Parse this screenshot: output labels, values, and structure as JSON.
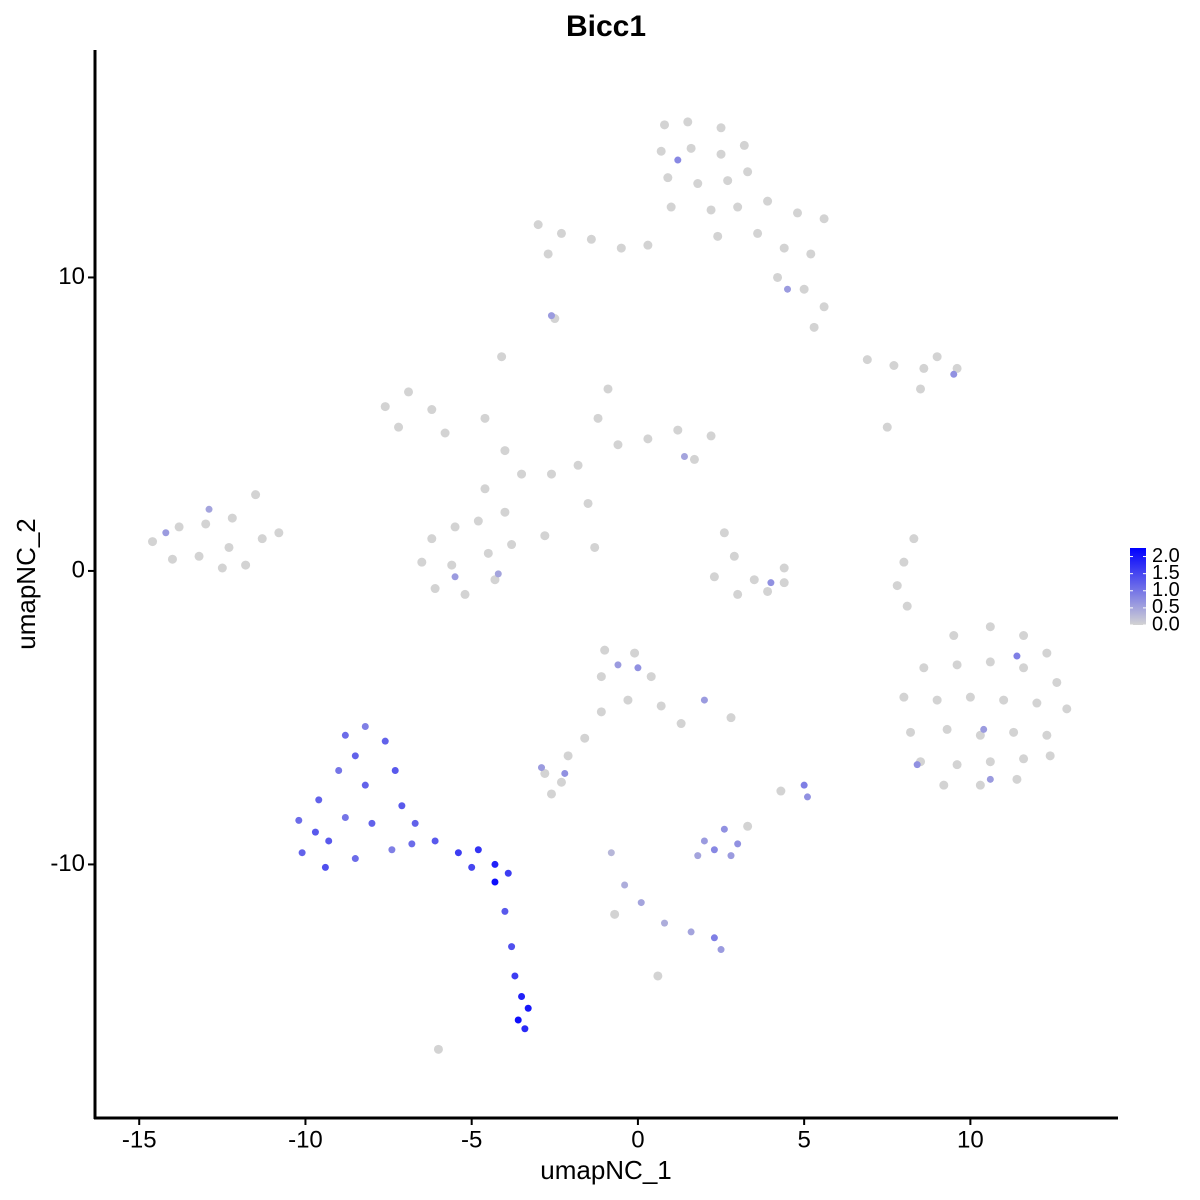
{
  "chart_data": {
    "type": "scatter",
    "title": "Bicc1",
    "x_label": "umapNC_1",
    "y_label": "umapNC_2",
    "xlim": [
      -16.33,
      14.44
    ],
    "ylim": [
      -18.64,
      17.75
    ],
    "xticks": [
      -15,
      -10,
      -5,
      0,
      5,
      10
    ],
    "yticks": [
      -10,
      0,
      10
    ],
    "color_low": "#d3d3d3",
    "color_high": "#0000ff",
    "clim": [
      0,
      2.25
    ],
    "colorbar_ticks": [
      {
        "value": 0,
        "label": "0.0"
      },
      {
        "value": 0.5,
        "label": "0.5"
      },
      {
        "value": 1,
        "label": "1.0"
      },
      {
        "value": 1.5,
        "label": "1.5"
      },
      {
        "value": 2,
        "label": "2.0"
      }
    ],
    "x": [
      0.8,
      1.5,
      2.5,
      0.7,
      1.6,
      2.5,
      3.2,
      0.9,
      1.8,
      2.7,
      3.3,
      1.0,
      2.2,
      3.0,
      3.9,
      4.8,
      5.6,
      2.4,
      3.6,
      4.4,
      5.2,
      4.2,
      5.0,
      5.6,
      5.3,
      -3.0,
      -2.3,
      -1.4,
      -0.5,
      0.3,
      -2.7,
      -2.5,
      -7.6,
      -6.9,
      -6.2,
      -7.2,
      -5.8,
      -4.1,
      -4.6,
      -4.0,
      -3.5,
      -4.6,
      -2.6,
      -1.8,
      -1.2,
      -0.9,
      -0.6,
      0.3,
      1.2,
      2.2,
      1.7,
      -1.5,
      -2.8,
      -4.8,
      -6.2,
      -5.5,
      -6.5,
      -5.6,
      -4.5,
      -3.8,
      -6.1,
      -5.2,
      -4.3,
      -1.3,
      -4.0,
      -14.6,
      -13.8,
      -13.0,
      -12.2,
      -11.5,
      -14.0,
      -13.2,
      -12.3,
      -11.3,
      -10.8,
      -12.5,
      -11.8,
      2.6,
      2.9,
      3.5,
      2.3,
      3.9,
      4.4,
      3.0,
      4.4,
      6.9,
      7.7,
      8.6,
      9.0,
      9.6,
      8.5,
      7.5,
      8.3,
      8.0,
      7.8,
      8.1,
      9.5,
      10.6,
      11.6,
      12.3,
      8.6,
      9.6,
      10.6,
      11.6,
      12.6,
      8.0,
      9.0,
      10.0,
      11.0,
      12.0,
      12.9,
      8.2,
      9.3,
      10.3,
      11.3,
      12.3,
      8.5,
      9.6,
      10.6,
      11.6,
      12.4,
      9.2,
      10.3,
      11.4,
      -1.0,
      -0.1,
      0.4,
      -1.1,
      -0.3,
      0.7,
      1.3,
      -1.1,
      -1.6,
      -2.1,
      -2.8,
      -2.3,
      2.8,
      -2.6,
      -0.7,
      0.6,
      -6.0,
      4.3,
      3.3,
      -10.2,
      -9.6,
      -9.0,
      -8.8,
      -8.2,
      -7.6,
      -7.3,
      -8.2,
      -9.3,
      -10.1,
      -9.4,
      -8.5,
      -8.0,
      -7.4,
      -7.1,
      -6.7,
      -6.8,
      -8.8,
      -9.7,
      -8.5,
      -6.1,
      -5.4,
      -4.8,
      -4.3,
      -3.9,
      -5.0,
      -4.3,
      -4.0,
      -3.8,
      -3.7,
      -3.5,
      -3.3,
      -3.6,
      -3.4,
      2.0,
      2.6,
      2.8,
      1.8,
      3.0,
      2.3,
      -0.8,
      -0.4,
      0.1,
      0.8,
      1.6,
      2.3,
      2.5,
      5.0,
      5.1,
      -2.9,
      -2.2,
      0.0,
      -0.6,
      -5.5,
      -4.2,
      1.4,
      2.0,
      11.4,
      10.4,
      8.4,
      10.6,
      1.2,
      4.5,
      9.5,
      -12.9,
      -14.2,
      -2.6,
      4.0
    ],
    "y": [
      15.2,
      15.3,
      15.1,
      14.3,
      14.4,
      14.2,
      14.5,
      13.4,
      13.2,
      13.3,
      13.6,
      12.4,
      12.3,
      12.4,
      12.6,
      12.2,
      12.0,
      11.4,
      11.5,
      11.0,
      10.8,
      10.0,
      9.6,
      9.0,
      8.3,
      11.8,
      11.5,
      11.3,
      11.0,
      11.1,
      10.8,
      8.6,
      5.6,
      6.1,
      5.5,
      4.9,
      4.7,
      7.3,
      5.2,
      4.1,
      3.3,
      2.8,
      3.3,
      3.6,
      5.2,
      6.2,
      4.3,
      4.5,
      4.8,
      4.6,
      3.8,
      2.3,
      1.2,
      1.7,
      1.1,
      1.5,
      0.3,
      0.2,
      0.6,
      0.9,
      -0.6,
      -0.8,
      -0.3,
      0.8,
      2.0,
      1.0,
      1.5,
      1.6,
      1.8,
      2.6,
      0.4,
      0.5,
      0.8,
      1.1,
      1.3,
      0.1,
      0.2,
      1.3,
      0.5,
      -0.3,
      -0.2,
      -0.7,
      -0.4,
      -0.8,
      0.1,
      7.2,
      7.0,
      6.9,
      7.3,
      6.9,
      6.2,
      4.9,
      1.1,
      0.3,
      -0.5,
      -1.2,
      -2.2,
      -1.9,
      -2.2,
      -2.8,
      -3.3,
      -3.2,
      -3.1,
      -3.3,
      -3.8,
      -4.3,
      -4.4,
      -4.3,
      -4.4,
      -4.5,
      -4.7,
      -5.5,
      -5.4,
      -5.6,
      -5.5,
      -5.6,
      -6.5,
      -6.6,
      -6.5,
      -6.4,
      -6.3,
      -7.3,
      -7.3,
      -7.1,
      -2.7,
      -2.8,
      -3.6,
      -3.6,
      -4.4,
      -4.6,
      -5.2,
      -4.8,
      -5.7,
      -6.3,
      -6.9,
      -7.2,
      -5.0,
      -7.6,
      -11.7,
      -13.8,
      -16.3,
      -7.5,
      -8.7,
      -8.5,
      -7.8,
      -6.8,
      -5.6,
      -5.3,
      -5.8,
      -6.8,
      -7.3,
      -9.2,
      -9.6,
      -10.1,
      -9.8,
      -8.6,
      -9.5,
      -8.0,
      -8.6,
      -9.3,
      -8.4,
      -8.9,
      -6.3,
      -9.2,
      -9.6,
      -9.5,
      -10.0,
      -10.3,
      -10.1,
      -10.6,
      -11.6,
      -12.8,
      -13.8,
      -14.5,
      -14.9,
      -15.3,
      -15.6,
      -9.2,
      -8.8,
      -9.7,
      -9.7,
      -9.3,
      -9.5,
      -9.6,
      -10.7,
      -11.3,
      -12.0,
      -12.3,
      -12.5,
      -12.9,
      -7.3,
      -7.7,
      -6.7,
      -6.9,
      -3.3,
      -3.2,
      -0.2,
      -0.1,
      3.9,
      -4.4,
      -2.9,
      -5.4,
      -6.6,
      -7.1,
      14.0,
      9.6,
      6.7,
      2.1,
      1.3,
      8.7,
      -0.4
    ],
    "values": [
      0,
      0,
      0,
      0,
      0,
      0,
      0,
      0,
      0,
      0,
      0,
      0,
      0,
      0,
      0,
      0,
      0,
      0,
      0,
      0,
      0,
      0,
      0,
      0,
      0,
      0,
      0,
      0,
      0,
      0,
      0,
      0,
      0,
      0,
      0,
      0,
      0,
      0,
      0,
      0,
      0,
      0,
      0,
      0,
      0,
      0,
      0,
      0,
      0,
      0,
      0,
      0,
      0,
      0,
      0,
      0,
      0,
      0,
      0,
      0,
      0,
      0,
      0,
      0,
      0,
      0,
      0,
      0,
      0,
      0,
      0,
      0,
      0,
      0,
      0,
      0,
      0,
      0,
      0,
      0,
      0,
      0,
      0,
      0,
      0,
      0,
      0,
      0,
      0,
      0,
      0,
      0,
      0,
      0,
      0,
      0,
      0,
      0,
      0,
      0,
      0,
      0,
      0,
      0,
      0,
      0,
      0,
      0,
      0,
      0,
      0,
      0,
      0,
      0,
      0,
      0,
      0,
      0,
      0,
      0,
      0,
      0,
      0,
      0,
      0,
      0,
      0,
      0,
      0,
      0,
      0,
      0,
      0,
      0,
      0,
      0,
      0,
      0,
      0,
      0,
      0,
      0,
      0,
      1.1,
      1.2,
      1.0,
      1.1,
      0.9,
      1.2,
      1.3,
      1.2,
      1.3,
      1.2,
      1.4,
      1.1,
      1.2,
      0.9,
      1.3,
      1.2,
      1.1,
      1.0,
      1.3,
      1.2,
      1.3,
      1.6,
      1.7,
      1.9,
      1.6,
      1.5,
      2.1,
      1.3,
      1.4,
      1.6,
      1.9,
      2.0,
      2.1,
      1.8,
      0.6,
      0.7,
      0.6,
      0.5,
      0.7,
      0.8,
      0.3,
      0.4,
      0.5,
      0.4,
      0.5,
      0.9,
      0.6,
      0.9,
      0.7,
      0.6,
      0.7,
      0.7,
      0.6,
      0.6,
      0.5,
      0.5,
      0.6,
      0.9,
      0.6,
      0.7,
      0.6,
      0.8,
      0.6,
      0.7,
      0.5,
      0.6,
      0.6,
      0.7
    ]
  }
}
